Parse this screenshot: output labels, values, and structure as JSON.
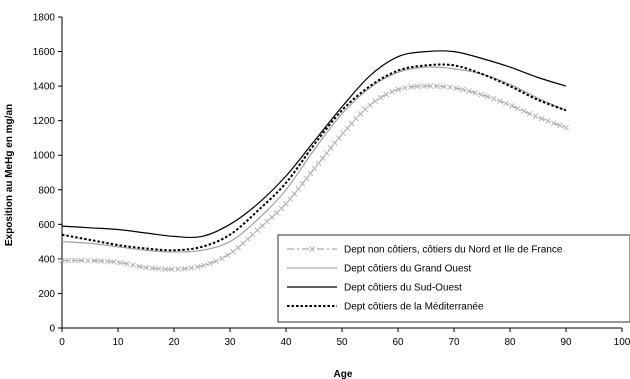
{
  "chart_data": {
    "type": "line",
    "title": "",
    "xlabel": "Age",
    "ylabel": "Exposition au MeHg en mg/an",
    "xlim": [
      0,
      100
    ],
    "ylim": [
      0,
      1800
    ],
    "xticks": [
      0,
      10,
      20,
      30,
      40,
      50,
      60,
      70,
      80,
      90,
      100
    ],
    "yticks": [
      0,
      200,
      400,
      600,
      800,
      1000,
      1200,
      1400,
      1600,
      1800
    ],
    "grid": false,
    "legend_position": "bottom-right",
    "x": [
      0,
      5,
      10,
      15,
      20,
      25,
      30,
      35,
      40,
      45,
      50,
      55,
      60,
      65,
      70,
      75,
      80,
      85,
      90
    ],
    "series": [
      {
        "name": "Dept non côtiers, côtiers du Nord et Ile de France",
        "color": "#aaaaaa",
        "style": "dash-dot-markers",
        "values": [
          390,
          390,
          380,
          350,
          340,
          360,
          430,
          570,
          720,
          920,
          1120,
          1290,
          1380,
          1400,
          1390,
          1350,
          1290,
          1220,
          1160
        ]
      },
      {
        "name": "Dept côtiers du Grand Ouest",
        "color": "#999999",
        "style": "solid",
        "values": [
          500,
          490,
          470,
          450,
          440,
          450,
          500,
          630,
          800,
          1030,
          1240,
          1390,
          1480,
          1510,
          1500,
          1470,
          1410,
          1330,
          1260
        ]
      },
      {
        "name": "Dept côtiers du Sud-Ouest",
        "color": "#000000",
        "style": "solid",
        "values": [
          590,
          580,
          570,
          550,
          530,
          530,
          600,
          720,
          880,
          1080,
          1280,
          1460,
          1570,
          1600,
          1600,
          1560,
          1510,
          1450,
          1400
        ]
      },
      {
        "name": "Dept côtiers de la Méditerranée",
        "color": "#000000",
        "style": "dotted",
        "values": [
          540,
          510,
          480,
          460,
          450,
          470,
          540,
          680,
          840,
          1060,
          1260,
          1400,
          1490,
          1520,
          1520,
          1470,
          1400,
          1320,
          1260
        ]
      }
    ]
  }
}
